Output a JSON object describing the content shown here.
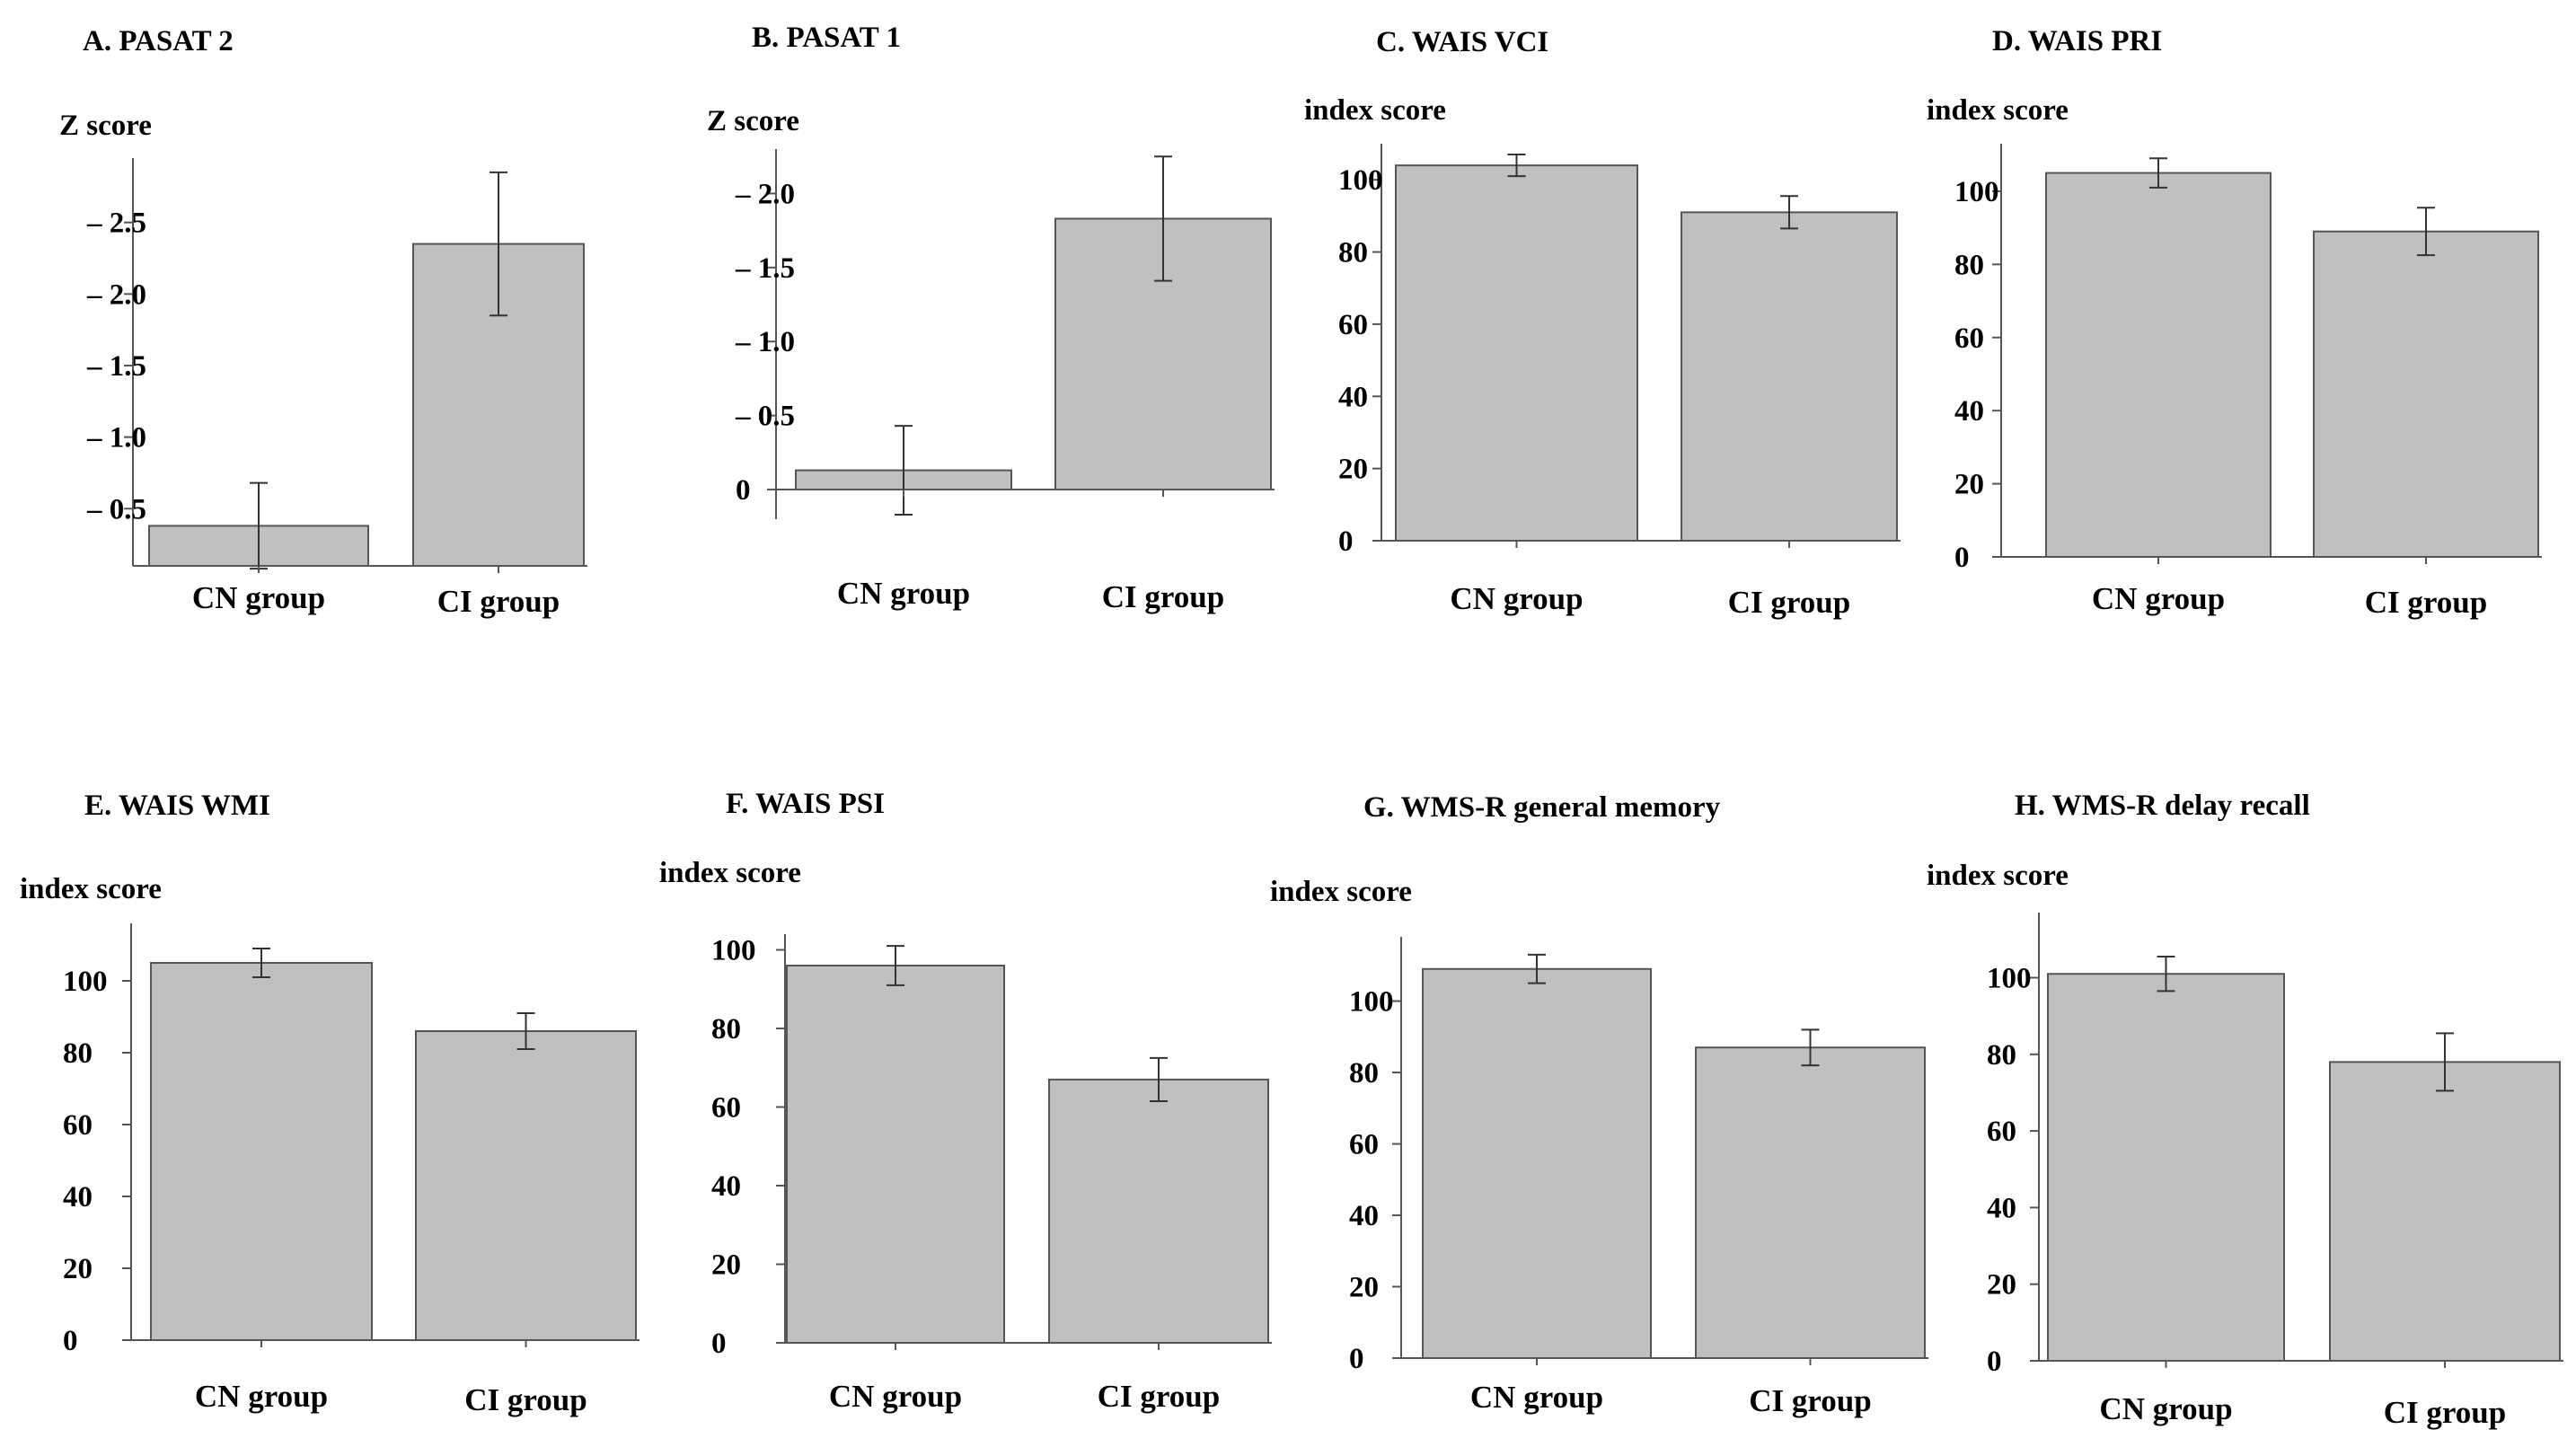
{
  "colors": {
    "bar_fill": "#c0c0c0",
    "bar_stroke": "#555555",
    "axis": "#555555",
    "text": "#000000"
  },
  "chart_data": [
    {
      "type": "bar",
      "title": "A. PASAT 2",
      "ylabel": "Z score",
      "categories": [
        "CN group",
        "CI group"
      ],
      "values": [
        -0.38,
        -2.35
      ],
      "error": [
        0.3,
        0.5
      ],
      "ylim": [
        -0.1,
        -2.95
      ],
      "ticks": [
        -2.5,
        -2.0,
        -1.5,
        -1.0,
        -0.5
      ],
      "tick_labels": [
        "– 2.5",
        "– 2.0",
        "– 1.5",
        "– 1.0",
        "– 0.5"
      ]
    },
    {
      "type": "bar",
      "title": "B. PASAT 1",
      "ylabel": "Z score",
      "categories": [
        "CN group",
        "CI group"
      ],
      "values": [
        -0.13,
        -1.83
      ],
      "error": [
        0.3,
        0.42
      ],
      "ylim": [
        0.2,
        -2.3
      ],
      "ticks": [
        -2.0,
        -1.5,
        -1.0,
        -0.5,
        0
      ],
      "tick_labels": [
        "– 2.0",
        "– 1.5",
        "– 1.0",
        "– 0.5",
        "0"
      ]
    },
    {
      "type": "bar",
      "title": "C. WAIS VCI",
      "ylabel": "index score",
      "categories": [
        "CN group",
        "CI group"
      ],
      "values": [
        104,
        91
      ],
      "error": [
        3,
        4.5
      ],
      "ylim": [
        0,
        110
      ],
      "ticks": [
        0,
        20,
        40,
        60,
        80,
        100
      ],
      "tick_labels": [
        "0",
        "20",
        "40",
        "60",
        "80",
        "100"
      ]
    },
    {
      "type": "bar",
      "title": "D. WAIS PRI",
      "ylabel": "index score",
      "categories": [
        "CN group",
        "CI group"
      ],
      "values": [
        105,
        89
      ],
      "error": [
        4,
        6.5
      ],
      "ylim": [
        0,
        113
      ],
      "ticks": [
        0,
        20,
        40,
        60,
        80,
        100
      ],
      "tick_labels": [
        "0",
        "20",
        "40",
        "60",
        "80",
        "100"
      ]
    },
    {
      "type": "bar",
      "title": "E. WAIS WMI",
      "ylabel": "index score",
      "categories": [
        "CN group",
        "CI group"
      ],
      "values": [
        105,
        86
      ],
      "error": [
        4,
        5
      ],
      "ylim": [
        0,
        116
      ],
      "ticks": [
        0,
        20,
        40,
        60,
        80,
        100
      ],
      "tick_labels": [
        "0",
        "20",
        "40",
        "60",
        "80",
        "100"
      ]
    },
    {
      "type": "bar",
      "title": "F. WAIS PSI",
      "ylabel": "index score",
      "categories": [
        "CN group",
        "CI group"
      ],
      "values": [
        96,
        67
      ],
      "error": [
        5,
        5.5
      ],
      "ylim": [
        0,
        104
      ],
      "ticks": [
        0,
        20,
        40,
        60,
        80,
        100
      ],
      "tick_labels": [
        "0",
        "20",
        "40",
        "60",
        "80",
        "100"
      ]
    },
    {
      "type": "bar",
      "title": "G. WMS-R general memory",
      "ylabel": "index score",
      "categories": [
        "CN group",
        "CI group"
      ],
      "values": [
        109,
        87
      ],
      "error": [
        4,
        5
      ],
      "ylim": [
        0,
        118
      ],
      "ticks": [
        0,
        20,
        40,
        60,
        80,
        100
      ],
      "tick_labels": [
        "0",
        "20",
        "40",
        "60",
        "80",
        "100"
      ]
    },
    {
      "type": "bar",
      "title": "H. WMS-R delay recall",
      "ylabel": "index score",
      "categories": [
        "CN group",
        "CI group"
      ],
      "values": [
        101,
        78
      ],
      "error": [
        4.5,
        7.5
      ],
      "ylim": [
        0,
        117
      ],
      "ticks": [
        0,
        20,
        40,
        60,
        80,
        100
      ],
      "tick_labels": [
        "0",
        "20",
        "40",
        "60",
        "80",
        "100"
      ]
    }
  ]
}
